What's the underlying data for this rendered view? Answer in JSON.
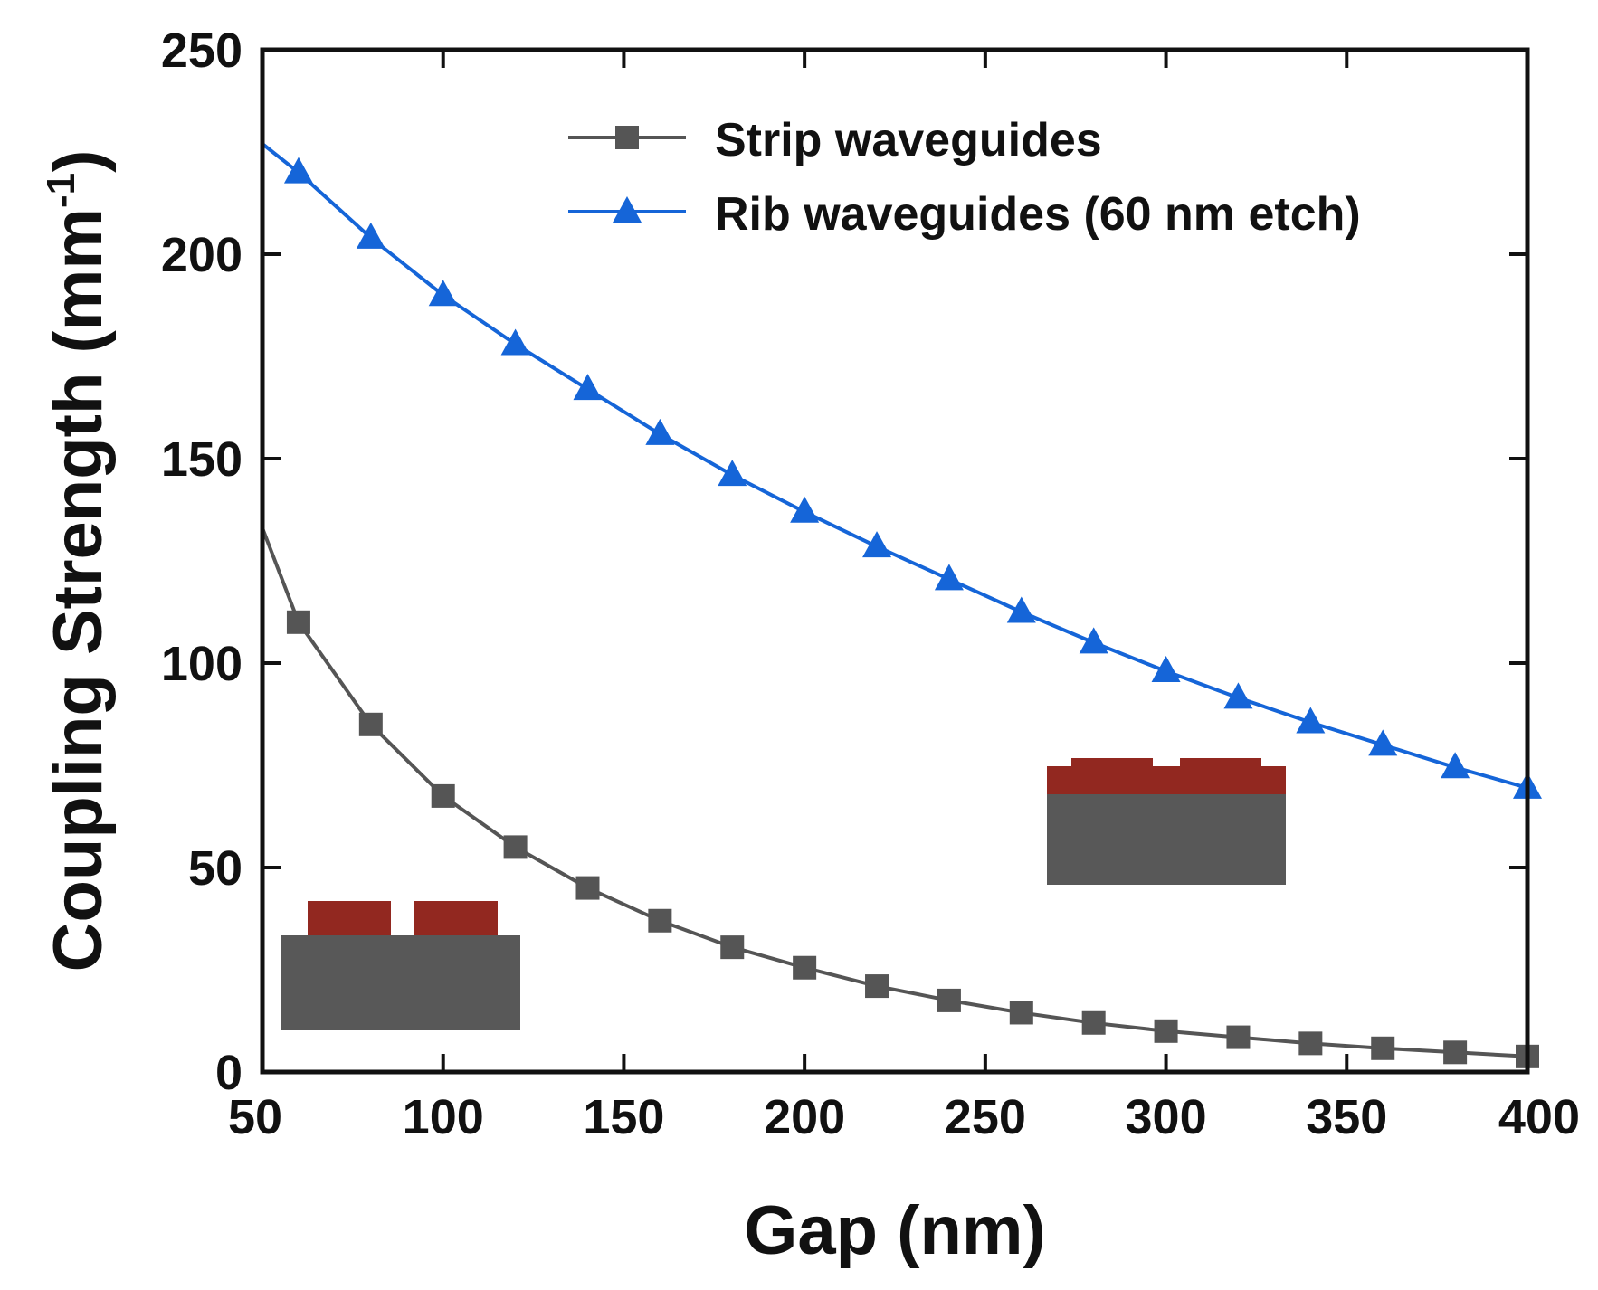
{
  "chart_data": {
    "type": "line",
    "title": "",
    "xlabel": "Gap (nm)",
    "ylabel": "Coupling Strength (mm",
    "ylabel_superscript": "-1",
    "ylabel_close": ")",
    "xlim": [
      50,
      400
    ],
    "ylim": [
      0,
      250
    ],
    "xticks": [
      50,
      100,
      150,
      200,
      250,
      300,
      350,
      400
    ],
    "yticks": [
      0,
      50,
      100,
      150,
      200,
      250
    ],
    "legend_position": "top-right",
    "series": [
      {
        "name": "Strip waveguides",
        "marker": "square",
        "color": "#555555",
        "line_start": [
          50,
          133
        ],
        "x": [
          60,
          80,
          100,
          120,
          140,
          160,
          180,
          200,
          220,
          240,
          260,
          280,
          300,
          320,
          340,
          360,
          380,
          400
        ],
        "values": [
          110,
          85,
          67.5,
          55,
          45,
          37,
          30.5,
          25.5,
          21,
          17.5,
          14.5,
          12,
          10,
          8.5,
          7,
          5.8,
          4.8,
          3.8
        ]
      },
      {
        "name": "Rib waveguides (60 nm etch)",
        "marker": "triangle",
        "color": "#1565d8",
        "line_start": [
          50,
          227
        ],
        "x": [
          60,
          80,
          100,
          120,
          140,
          160,
          180,
          200,
          220,
          240,
          260,
          280,
          300,
          320,
          340,
          360,
          380,
          400
        ],
        "values": [
          220,
          204,
          190,
          178,
          167,
          156,
          146,
          137,
          128.5,
          120.5,
          112.5,
          105,
          98,
          91.5,
          85.5,
          80,
          74.5,
          69.5
        ]
      }
    ],
    "insets": [
      {
        "name": "strip-waveguide-cross-section",
        "colors": {
          "core": "#922820",
          "substrate": "#585858"
        }
      },
      {
        "name": "rib-waveguide-cross-section",
        "colors": {
          "core": "#922820",
          "substrate": "#585858"
        }
      }
    ]
  }
}
